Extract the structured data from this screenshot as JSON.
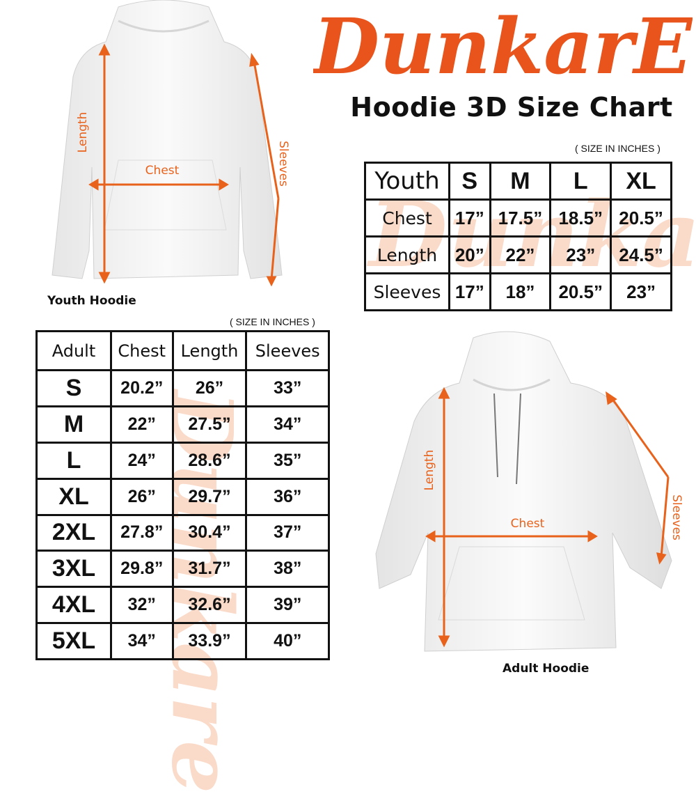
{
  "brand": {
    "logo_text": "DunkarE",
    "color": "#e8541c"
  },
  "title": "Hoodie 3D Size Chart",
  "youth": {
    "unit_note": "( SIZE IN INCHES )",
    "caption": "Youth Hoodie",
    "measure_labels": {
      "length": "Length",
      "chest": "Chest",
      "sleeves": "Sleeves"
    },
    "header": [
      "Youth",
      "S",
      "M",
      "L",
      "XL"
    ],
    "rows": [
      [
        "Chest",
        "17”",
        "17.5”",
        "18.5”",
        "20.5”"
      ],
      [
        "Length",
        "20”",
        "22”",
        "23”",
        "24.5”"
      ],
      [
        "Sleeves",
        "17”",
        "18”",
        "20.5”",
        "23”"
      ]
    ]
  },
  "adult": {
    "unit_note": "( SIZE IN INCHES )",
    "caption": "Adult Hoodie",
    "measure_labels": {
      "length": "Length",
      "chest": "Chest",
      "sleeves": "Sleeves"
    },
    "header": [
      "Adult",
      "Chest",
      "Length",
      "Sleeves"
    ],
    "rows": [
      [
        "S",
        "20.2”",
        "26”",
        "33”"
      ],
      [
        "M",
        "22”",
        "27.5”",
        "34”"
      ],
      [
        "L",
        "24”",
        "28.6”",
        "35”"
      ],
      [
        "XL",
        "26”",
        "29.7”",
        "36”"
      ],
      [
        "2XL",
        "27.8”",
        "30.4”",
        "37”"
      ],
      [
        "3XL",
        "29.8”",
        "31.7”",
        "38”"
      ],
      [
        "4XL",
        "32”",
        "32.6”",
        "39”"
      ],
      [
        "5XL",
        "34”",
        "33.9”",
        "40”"
      ]
    ]
  }
}
